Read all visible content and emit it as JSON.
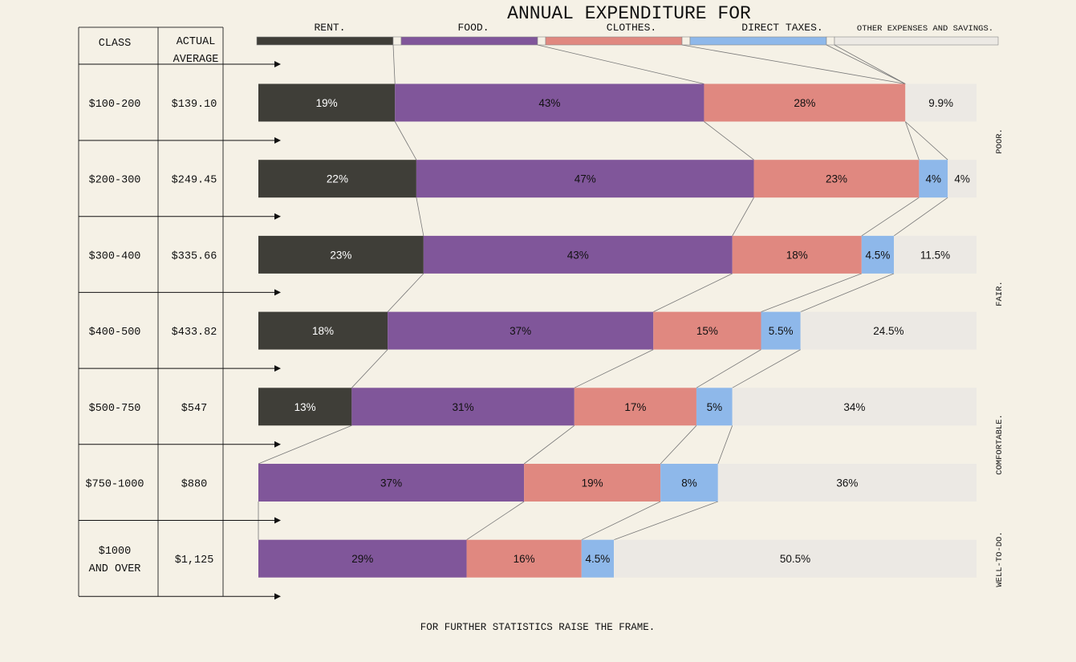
{
  "title": "ANNUAL EXPENDITURE FOR",
  "legend": [
    {
      "label": "RENT.",
      "color": "#3f3e38"
    },
    {
      "label": "FOOD.",
      "color": "#80569a"
    },
    {
      "label": "CLOTHES.",
      "color": "#e08880"
    },
    {
      "label": "DIRECT TAXES.",
      "color": "#8eb8ea"
    },
    {
      "label": "OTHER EXPENSES AND SAVINGS.",
      "color": "#ece9e4"
    }
  ],
  "table_headers": {
    "class": "CLASS",
    "actual_line1": "ACTUAL",
    "actual_line2": "AVERAGE"
  },
  "side_labels": [
    "POOR.",
    "FAIR.",
    "COMFORTABLE.",
    "WELL-TO-DO."
  ],
  "footer": "FOR FURTHER STATISTICS RAISE THE FRAME.",
  "chart_data": {
    "type": "bar",
    "orientation": "horizontal-stacked-100",
    "title": "ANNUAL EXPENDITURE FOR",
    "categories": [
      "$100-200",
      "$200-300",
      "$300-400",
      "$400-500",
      "$500-750",
      "$750-1000",
      "$1000 AND OVER"
    ],
    "category_lines": [
      [
        "$100-200"
      ],
      [
        "$200-300"
      ],
      [
        "$300-400"
      ],
      [
        "$400-500"
      ],
      [
        "$500-750"
      ],
      [
        "$750-1000"
      ],
      [
        "$1000",
        "AND OVER"
      ]
    ],
    "averages": [
      "$139.10",
      "$249.45",
      "$335.66",
      "$433.82",
      "$547",
      "$880",
      "$1,125"
    ],
    "series": [
      {
        "name": "RENT.",
        "values": [
          19,
          22,
          23,
          18,
          13,
          0,
          0
        ]
      },
      {
        "name": "FOOD.",
        "values": [
          43,
          47,
          43,
          37,
          31,
          37,
          29
        ]
      },
      {
        "name": "CLOTHES.",
        "values": [
          28,
          23,
          18,
          15,
          17,
          19,
          16
        ]
      },
      {
        "name": "DIRECT TAXES.",
        "values": [
          0,
          4,
          4.5,
          5.5,
          5,
          8,
          4.5
        ]
      },
      {
        "name": "OTHER EXPENSES AND SAVINGS.",
        "values": [
          9.9,
          4,
          11.5,
          24.5,
          34,
          36,
          50.5
        ]
      }
    ],
    "labels": [
      [
        "19%",
        "43%",
        "28%",
        "",
        "9.9%"
      ],
      [
        "22%",
        "47%",
        "23%",
        "4%",
        "4%"
      ],
      [
        "23%",
        "43%",
        "18%",
        "4.5%",
        "11.5%"
      ],
      [
        "18%",
        "37%",
        "15%",
        "5.5%",
        "24.5%"
      ],
      [
        "13%",
        "31%",
        "17%",
        "5%",
        "34%"
      ],
      [
        "",
        "37%",
        "19%",
        "8%",
        "36%"
      ],
      [
        "",
        "29%",
        "16%",
        "4.5%",
        "50.5%"
      ]
    ],
    "label_colors": [
      "#ffffff",
      "#111111",
      "#111111",
      "#111111",
      "#111111"
    ],
    "xlim": [
      0,
      100
    ]
  }
}
